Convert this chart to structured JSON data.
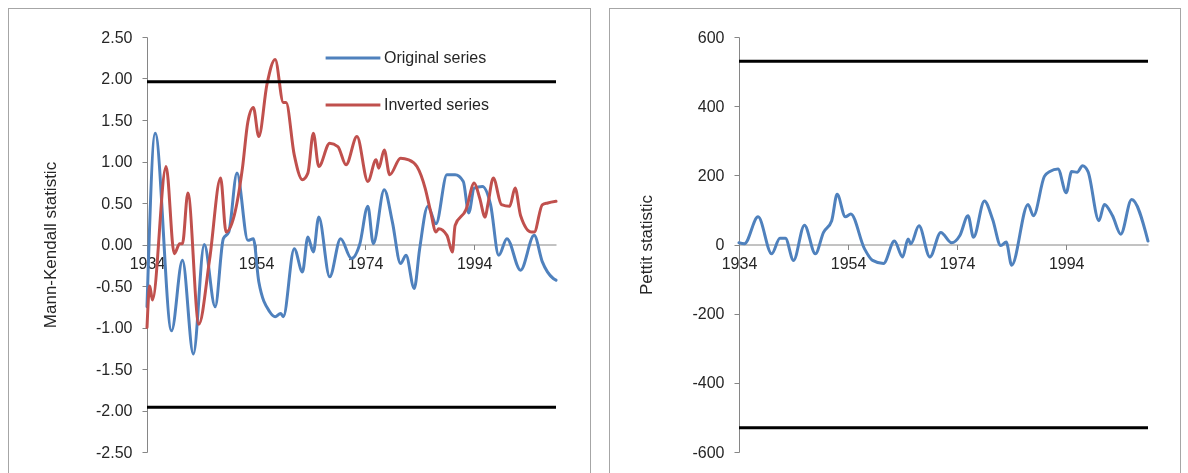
{
  "chart_data": [
    {
      "type": "line",
      "ylabel": "Mann-Kendall statistic",
      "xlim": [
        1934,
        2009
      ],
      "xticks": [
        1934,
        1954,
        1974,
        1994
      ],
      "ylim": [
        -2.5,
        2.5
      ],
      "yticks": [
        {
          "value": -2.5,
          "label": "-2.50"
        },
        {
          "value": -2,
          "label": "-2.00"
        },
        {
          "value": -1.5,
          "label": "-1.50"
        },
        {
          "value": -1,
          "label": "-1.00"
        },
        {
          "value": -0.5,
          "label": "-0.50"
        },
        {
          "value": 0,
          "label": "0.00"
        },
        {
          "value": 0.5,
          "label": "0.50"
        },
        {
          "value": 1,
          "label": "1.00"
        },
        {
          "value": 1.5,
          "label": "1.50"
        },
        {
          "value": 2,
          "label": "2.00"
        },
        {
          "value": 2.5,
          "label": "2.50"
        }
      ],
      "legend": "top right",
      "ref_lines": [
        {
          "axis": "y",
          "value": 1.96,
          "color": "#000000"
        },
        {
          "axis": "y",
          "value": -1.96,
          "color": "#000000"
        }
      ],
      "series": [
        {
          "name": "Original series",
          "color": "#4f81bd",
          "x": [
            1934,
            1935.5,
            1938.5,
            1940.5,
            1942.5,
            1944.5,
            1946.5,
            1948,
            1949,
            1950.5,
            1952.5,
            1953.5,
            1954.5,
            1956.5,
            1957.5,
            1958.5,
            1959,
            1961,
            1962.5,
            1963.5,
            1964.5,
            1965.5,
            1967.5,
            1969.5,
            1971.5,
            1973,
            1974.5,
            1975.5,
            1977.5,
            1979,
            1980.5,
            1981.5,
            1983,
            1984,
            1985.5,
            1987,
            1989,
            1990.5,
            1992,
            1993,
            1994,
            1995.5,
            1997,
            1998.5,
            2000,
            2002.5,
            2005,
            2006.5,
            2008.5,
            2009
          ],
          "values": [
            -0.75,
            1.34,
            -1.04,
            -0.19,
            -1.32,
            0.0,
            -0.75,
            0.07,
            0.15,
            0.86,
            0.05,
            0.07,
            -0.45,
            -0.81,
            -0.87,
            -0.83,
            -0.87,
            -0.05,
            -0.33,
            0.09,
            -0.09,
            0.33,
            -0.39,
            0.07,
            -0.17,
            0.0,
            0.46,
            0.01,
            0.66,
            0.27,
            -0.23,
            -0.13,
            -0.53,
            -0.05,
            0.46,
            0.25,
            0.84,
            0.84,
            0.76,
            0.38,
            0.68,
            0.7,
            0.48,
            -0.13,
            0.07,
            -0.31,
            0.11,
            -0.21,
            -0.41,
            -0.43
          ]
        },
        {
          "name": "Inverted series",
          "color": "#c0504d",
          "x": [
            1934,
            1934.5,
            1935,
            1937.5,
            1939,
            1940,
            1940.5,
            1941.5,
            1943.5,
            1945.5,
            1947.5,
            1948.5,
            1950,
            1951.5,
            1952.5,
            1953.5,
            1954.5,
            1956,
            1957.5,
            1959,
            1959.5,
            1961,
            1962.5,
            1963.5,
            1964.5,
            1965.5,
            1967.5,
            1969,
            1970.5,
            1972.5,
            1974.5,
            1976,
            1976.5,
            1977.5,
            1978.5,
            1980.5,
            1982,
            1983.5,
            1985,
            1986,
            1987,
            1987.5,
            1989,
            1990,
            1990.5,
            1992.5,
            1994,
            1995,
            1996,
            1996.5,
            1997.5,
            1999,
            2000.5,
            2001.5,
            2002.5,
            2004.5,
            2005,
            2006.5,
            2007.5,
            2009
          ],
          "values": [
            -1.0,
            -0.5,
            -0.67,
            0.94,
            -0.11,
            0.01,
            0.01,
            0.62,
            -0.96,
            -0.17,
            0.8,
            0.15,
            0.35,
            0.92,
            1.48,
            1.65,
            1.3,
            1.93,
            2.23,
            1.71,
            1.71,
            1.08,
            0.78,
            0.86,
            1.34,
            0.94,
            1.22,
            1.18,
            0.96,
            1.3,
            0.76,
            1.02,
            0.92,
            1.14,
            0.84,
            1.04,
            1.02,
            0.94,
            0.68,
            0.4,
            0.15,
            0.19,
            0.11,
            -0.09,
            0.23,
            0.42,
            0.74,
            0.56,
            0.33,
            0.48,
            0.8,
            0.48,
            0.46,
            0.68,
            0.35,
            0.15,
            0.15,
            0.48,
            0.5,
            0.52
          ]
        }
      ]
    },
    {
      "type": "line",
      "ylabel": "Pettit statistic",
      "xlim": [
        1934,
        2009
      ],
      "xticks": [
        1934,
        1954,
        1974,
        1994
      ],
      "ylim": [
        -600,
        600
      ],
      "yticks": [
        -600,
        -400,
        -200,
        0,
        200,
        400,
        600
      ],
      "ref_lines": [
        {
          "axis": "y",
          "value": 530,
          "color": "#000000"
        },
        {
          "axis": "y",
          "value": -530,
          "color": "#000000"
        }
      ],
      "series": [
        {
          "color": "#4f81bd",
          "x": [
            1934,
            1935,
            1937.5,
            1940,
            1941.5,
            1942.5,
            1944,
            1946,
            1948,
            1949.5,
            1951,
            1952,
            1953.5,
            1954.5,
            1957,
            1958.5,
            1960.5,
            1962.5,
            1964,
            1965,
            1965.5,
            1967,
            1969,
            1971,
            1973,
            1974.5,
            1976,
            1977,
            1979,
            1980.5,
            1982,
            1983,
            1984,
            1987,
            1988,
            1990,
            1991,
            1992.5,
            1994,
            1995,
            1996,
            1997,
            1998,
            2000,
            2001,
            2002.5,
            2004,
            2006,
            2009
          ],
          "values": [
            5,
            2,
            80,
            -27,
            18,
            18,
            -46,
            56,
            -27,
            35,
            69,
            145,
            80,
            88,
            -12,
            -46,
            -55,
            10,
            -36,
            16,
            2,
            54,
            -36,
            35,
            5,
            26,
            83,
            21,
            126,
            73,
            -3,
            7,
            -60,
            116,
            83,
            197,
            211,
            218,
            150,
            211,
            209,
            228,
            211,
            69,
            116,
            83,
            30,
            130,
            10
          ]
        }
      ]
    }
  ]
}
